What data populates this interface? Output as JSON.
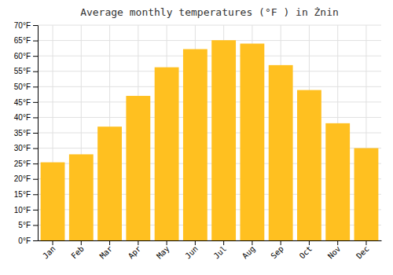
{
  "chart_data": {
    "type": "bar",
    "title": "Average monthly temperatures (°F ) in Żnin",
    "categories": [
      "Jan",
      "Feb",
      "Mar",
      "Apr",
      "May",
      "Jun",
      "Jul",
      "Aug",
      "Sep",
      "Oct",
      "Nov",
      "Dec"
    ],
    "values": [
      25.4,
      28.0,
      37.0,
      47.0,
      56.3,
      62.2,
      65.1,
      64.0,
      57.0,
      48.9,
      38.1,
      30.0
    ],
    "color": "#FFC020",
    "ylim": [
      0,
      70
    ],
    "yticks": [
      {
        "value": 0,
        "label": "0°F"
      },
      {
        "value": 5,
        "label": "5°F"
      },
      {
        "value": 10,
        "label": "10°F"
      },
      {
        "value": 15,
        "label": "15°F"
      },
      {
        "value": 20,
        "label": "20°F"
      },
      {
        "value": 25,
        "label": "25°F"
      },
      {
        "value": 30,
        "label": "30°F"
      },
      {
        "value": 35,
        "label": "35°F"
      },
      {
        "value": 40,
        "label": "40°F"
      },
      {
        "value": 45,
        "label": "45°F"
      },
      {
        "value": 50,
        "label": "50°F"
      },
      {
        "value": 55,
        "label": "55°F"
      },
      {
        "value": 60,
        "label": "60°F"
      },
      {
        "value": 65,
        "label": "65°F"
      },
      {
        "value": 70,
        "label": "70°F"
      }
    ],
    "grid": true
  }
}
